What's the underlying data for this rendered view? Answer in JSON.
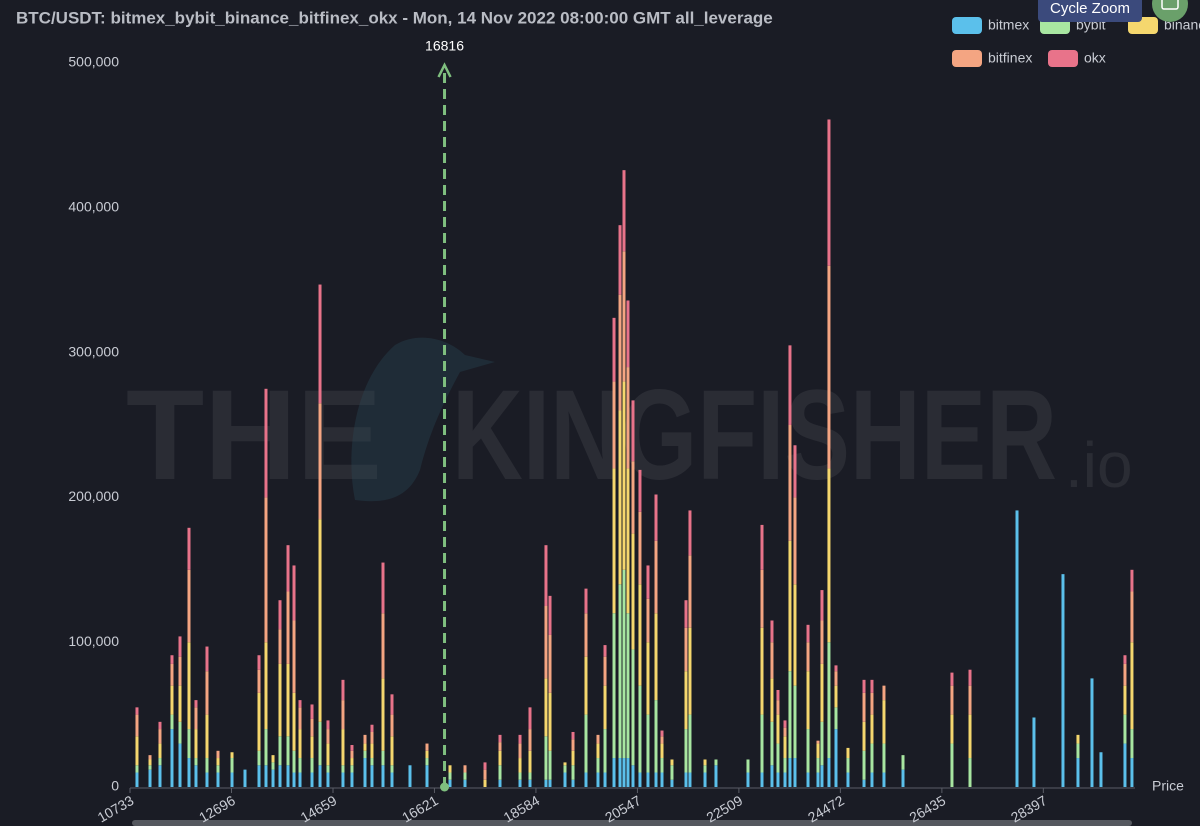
{
  "chart_data": {
    "type": "stacked_bar",
    "title": "BTC/USDT: bitmex_bybit_binance_bitfinex_okx - Mon, 14 Nov 2022 08:00:00 GMT all_leverage",
    "x_label": "Price",
    "x": [
      10868,
      11120,
      11313,
      11545,
      11700,
      11874,
      12009,
      12222,
      12435,
      12706,
      12957,
      13228,
      13363,
      13499,
      13634,
      13789,
      13905,
      14021,
      14253,
      14408,
      14562,
      14852,
      15026,
      15278,
      15413,
      15626,
      15800,
      16148,
      16477,
      16922,
      17212,
      17599,
      17889,
      18276,
      18469,
      18778,
      18856,
      19146,
      19301,
      19552,
      19784,
      19920,
      20094,
      20210,
      20287,
      20364,
      20461,
      20596,
      20751,
      20906,
      21022,
      21215,
      21486,
      21563,
      21854,
      22066,
      22685,
      22956,
      23149,
      23265,
      23401,
      23497,
      23594,
      23846,
      24039,
      24116,
      24251,
      24387,
      24619,
      24929,
      25083,
      25315,
      25683,
      26630,
      26979,
      27888,
      28216,
      28777,
      29067,
      29338,
      29512,
      29976,
      30111
    ],
    "series": [
      {
        "name": "bitmex",
        "color": "#5bc0eb",
        "values": [
          10000,
          12000,
          15000,
          40000,
          30000,
          20000,
          15000,
          10000,
          10000,
          10000,
          12000,
          15000,
          15000,
          12000,
          15000,
          15000,
          10000,
          10000,
          10000,
          15000,
          10000,
          10000,
          10000,
          20000,
          15000,
          15000,
          10000,
          15000,
          15000,
          5000,
          5000,
          0,
          5000,
          5000,
          5000,
          5000,
          5000,
          10000,
          5000,
          10000,
          10000,
          10000,
          20000,
          20000,
          20000,
          20000,
          15000,
          10000,
          10000,
          10000,
          10000,
          5000,
          10000,
          10000,
          10000,
          15000,
          10000,
          10000,
          15000,
          10000,
          10000,
          20000,
          20000,
          10000,
          10000,
          15000,
          20000,
          40000,
          10000,
          5000,
          10000,
          10000,
          12000,
          0,
          0,
          191000,
          48000,
          147000,
          20000,
          75000,
          24000,
          30000,
          20000
        ]
      },
      {
        "name": "bybit",
        "color": "#a8e6a1",
        "values": [
          5000,
          3000,
          5000,
          10000,
          15000,
          20000,
          5000,
          10000,
          5000,
          10000,
          0,
          10000,
          25000,
          5000,
          20000,
          20000,
          15000,
          10000,
          10000,
          30000,
          5000,
          5000,
          5000,
          5000,
          5000,
          10000,
          5000,
          0,
          5000,
          5000,
          5000,
          0,
          10000,
          5000,
          5000,
          30000,
          20000,
          5000,
          10000,
          40000,
          10000,
          30000,
          100000,
          120000,
          130000,
          100000,
          80000,
          60000,
          40000,
          50000,
          10000,
          10000,
          30000,
          40000,
          5000,
          4000,
          9000,
          40000,
          30000,
          20000,
          10000,
          60000,
          50000,
          30000,
          10000,
          30000,
          80000,
          15000,
          10000,
          20000,
          20000,
          20000,
          10000,
          30000,
          20000,
          0,
          0,
          0,
          10000,
          0,
          0,
          20000,
          20000
        ]
      },
      {
        "name": "binance",
        "color": "#f5d76e",
        "values": [
          20000,
          4000,
          10000,
          20000,
          25000,
          60000,
          20000,
          30000,
          5000,
          4000,
          0,
          40000,
          60000,
          5000,
          50000,
          50000,
          40000,
          20000,
          15000,
          140000,
          15000,
          25000,
          5000,
          5000,
          10000,
          50000,
          20000,
          0,
          5000,
          5000,
          0,
          5000,
          10000,
          10000,
          15000,
          40000,
          40000,
          2000,
          10000,
          40000,
          10000,
          30000,
          100000,
          120000,
          130000,
          100000,
          80000,
          70000,
          50000,
          60000,
          10000,
          4000,
          40000,
          60000,
          4000,
          0,
          0,
          60000,
          30000,
          20000,
          15000,
          90000,
          70000,
          40000,
          10000,
          40000,
          120000,
          15000,
          7000,
          20000,
          20000,
          30000,
          0,
          20000,
          30000,
          0,
          0,
          0,
          6000,
          0,
          0,
          20000,
          60000
        ]
      },
      {
        "name": "bitfinex",
        "color": "#f4a582",
        "values": [
          15000,
          3000,
          10000,
          15000,
          20000,
          50000,
          15000,
          30000,
          5000,
          0,
          0,
          16000,
          100000,
          0,
          24000,
          50000,
          50000,
          15000,
          12000,
          80000,
          10000,
          20000,
          5000,
          6000,
          8000,
          45000,
          15000,
          0,
          5000,
          0,
          5000,
          7000,
          6000,
          10000,
          15000,
          50000,
          40000,
          0,
          8000,
          30000,
          6000,
          20000,
          60000,
          80000,
          90000,
          70000,
          50000,
          50000,
          30000,
          50000,
          5000,
          0,
          30000,
          50000,
          0,
          0,
          0,
          40000,
          25000,
          10000,
          6000,
          80000,
          60000,
          20000,
          2000,
          30000,
          140000,
          10000,
          0,
          20000,
          15000,
          10000,
          0,
          20000,
          20000,
          0,
          0,
          0,
          0,
          0,
          0,
          15000,
          35000
        ]
      },
      {
        "name": "okx",
        "color": "#e8738a",
        "values": [
          5000,
          0,
          5000,
          6000,
          14000,
          29000,
          5000,
          17000,
          0,
          0,
          0,
          10000,
          75000,
          0,
          20000,
          32000,
          38000,
          5000,
          10000,
          82000,
          6000,
          14000,
          4000,
          0,
          5000,
          35000,
          14000,
          0,
          0,
          0,
          0,
          5000,
          5000,
          6000,
          15000,
          42000,
          27000,
          0,
          5000,
          17000,
          0,
          8000,
          44000,
          48000,
          56000,
          46000,
          42000,
          29000,
          23000,
          32000,
          4000,
          0,
          19000,
          31000,
          0,
          0,
          0,
          31000,
          15000,
          7000,
          5000,
          55000,
          36000,
          12000,
          0,
          21000,
          101000,
          4000,
          0,
          9000,
          9000,
          0,
          0,
          9000,
          11000,
          0,
          0,
          0,
          0,
          0,
          0,
          6000,
          15000
        ]
      }
    ],
    "xlim": [
      10733,
      30170
    ],
    "xticks": [
      10733,
      12696,
      14659,
      16621,
      18584,
      20547,
      22509,
      24472,
      26435,
      28397
    ],
    "ylim": [
      0,
      500000
    ],
    "yticks": [
      0,
      {
        "value": 100000,
        "label": "100,000"
      },
      {
        "value": 200000,
        "label": "200,000"
      },
      {
        "value": 300000,
        "label": "300,000"
      },
      {
        "value": 400000,
        "label": "400,000"
      },
      {
        "value": 500000,
        "label": "500,000"
      }
    ],
    "grid": false,
    "marker": 16816,
    "marker_color": "#7fbf7f",
    "legend": "top-right"
  },
  "watermark": {
    "left": "THE",
    "right": "KINGFISHER",
    "suffix": ".io"
  },
  "toolbar": {
    "button": "Cycle Zoom"
  }
}
